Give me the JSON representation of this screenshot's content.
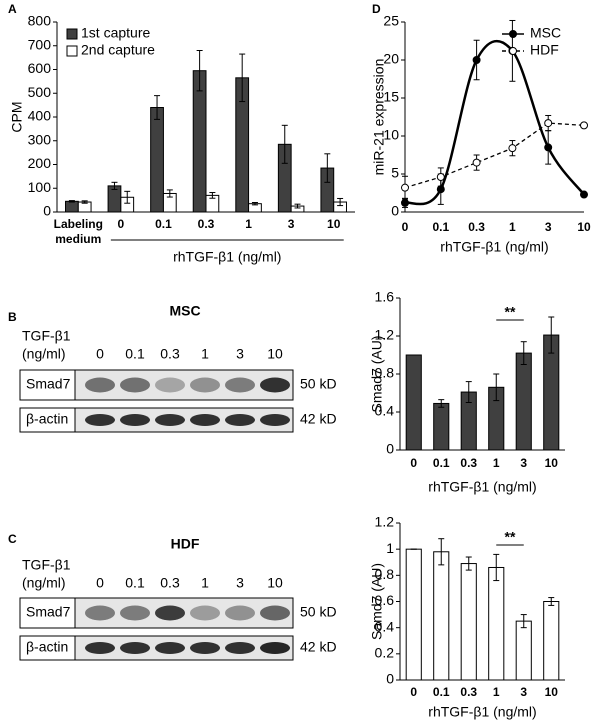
{
  "chart_data": [
    {
      "panel": "A",
      "type": "bar",
      "ylabel": "CPM",
      "xlabel": "rhTGF-β1 (ng/ml)",
      "legend": "upper left",
      "categories": [
        "Labeling medium",
        "0",
        "0.1",
        "0.3",
        "1",
        "3",
        "10"
      ],
      "ylim": [
        0,
        800
      ],
      "yticks": [
        0,
        100,
        200,
        300,
        400,
        500,
        600,
        700,
        800
      ],
      "series": [
        {
          "name": "1st capture",
          "color": "#404040",
          "values": [
            45,
            110,
            440,
            595,
            565,
            285,
            185
          ],
          "errors": [
            3,
            15,
            50,
            85,
            100,
            80,
            60
          ]
        },
        {
          "name": "2nd capture",
          "color": "#ffffff",
          "values": [
            42,
            62,
            78,
            70,
            35,
            25,
            42
          ],
          "errors": [
            5,
            25,
            15,
            12,
            5,
            8,
            15
          ]
        }
      ]
    },
    {
      "panel": "D",
      "type": "line",
      "ylabel": "miR-21 expression",
      "xlabel": "rhTGF-β1 (ng/ml)",
      "legend": "upper right",
      "categories": [
        "0",
        "0.1",
        "0.3",
        "1",
        "3",
        "10"
      ],
      "ylim": [
        0,
        25
      ],
      "yticks": [
        0,
        5,
        10,
        15,
        20,
        25
      ],
      "series": [
        {
          "name": "MSC",
          "color": "#000000",
          "linestyle": "solid",
          "marker_fill": "#000000",
          "smooth": true,
          "values": [
            1.2,
            3,
            20,
            21.2,
            8.5,
            2.3
          ],
          "errors": [
            0.6,
            2,
            2.6,
            4,
            2.2,
            0
          ]
        },
        {
          "name": "HDF",
          "color": "#000000",
          "linestyle": "dashed",
          "marker_fill": "#ffffff",
          "smooth": false,
          "values": [
            3.2,
            4.6,
            6.5,
            8.4,
            11.7,
            11.4
          ],
          "errors": [
            1.5,
            1.2,
            1,
            1,
            1,
            0
          ]
        }
      ]
    },
    {
      "type": "bar",
      "ylabel": "Smad7 (AU)",
      "xlabel": "rhTGF-β1 (ng/ml)",
      "annotation": "**",
      "categories": [
        "0",
        "0.1",
        "0.3",
        "1",
        "3",
        "10"
      ],
      "ylim": [
        0,
        1.6
      ],
      "yticks": [
        0,
        0.4,
        0.8,
        1.2,
        1.6
      ],
      "series": [
        {
          "color": "#404040",
          "values": [
            1,
            0.49,
            0.61,
            0.66,
            1.02,
            1.21
          ],
          "errors": [
            0,
            0.04,
            0.11,
            0.14,
            0.12,
            0.19
          ]
        }
      ]
    },
    {
      "type": "bar",
      "ylabel": "Samd7 (AU)",
      "xlabel": "rhTGF-β1 (ng/ml)",
      "annotation": "**",
      "categories": [
        "0",
        "0.1",
        "0.3",
        "1",
        "3",
        "10"
      ],
      "ylim": [
        0,
        1.2
      ],
      "yticks": [
        0,
        0.2,
        0.4,
        0.6,
        0.8,
        1,
        1.2
      ],
      "series": [
        {
          "color": "#ffffff",
          "values": [
            1,
            0.98,
            0.89,
            0.86,
            0.45,
            0.6
          ],
          "errors": [
            0,
            0.1,
            0.05,
            0.1,
            0.05,
            0.03
          ]
        }
      ]
    }
  ],
  "blots": [
    {
      "panel": "B",
      "title": "MSC",
      "treatment": [
        "TGF-β1",
        "(ng/ml)"
      ],
      "lanes": [
        "0",
        "0.1",
        "0.3",
        "1",
        "3",
        "10"
      ],
      "rows": [
        {
          "name": "Smad7",
          "size": "50 kD"
        },
        {
          "name": "β-actin",
          "size": "42 kD"
        }
      ]
    },
    {
      "panel": "C",
      "title": "HDF",
      "treatment": [
        "TGF-β1",
        "(ng/ml)"
      ],
      "lanes": [
        "0",
        "0.1",
        "0.3",
        "1",
        "3",
        "10"
      ],
      "rows": [
        {
          "name": "Smad7",
          "size": "50 kD"
        },
        {
          "name": "β-actin",
          "size": "42 kD"
        }
      ]
    }
  ]
}
